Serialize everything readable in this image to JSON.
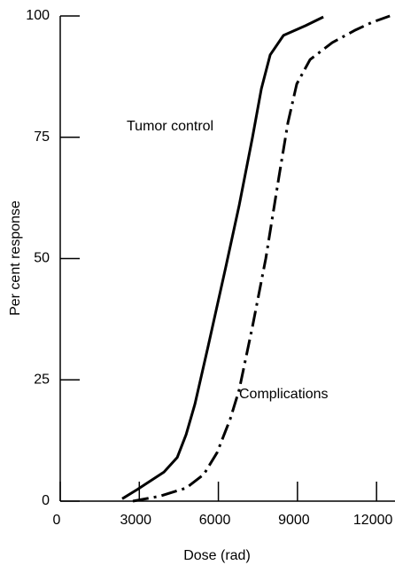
{
  "chart_data": {
    "type": "line",
    "xlabel": "Dose (rad)",
    "ylabel": "Per cent response",
    "xlim": [
      0,
      12700
    ],
    "ylim": [
      0,
      100
    ],
    "xticks": [
      0,
      3000,
      6000,
      9000,
      12000
    ],
    "yticks": [
      0,
      25,
      50,
      75,
      100
    ],
    "grid": false,
    "series": [
      {
        "name": "Tumor control",
        "color": "#000000",
        "style": "solid",
        "x": [
          2353,
          2924,
          3933,
          4437,
          4773,
          5109,
          5613,
          6286,
          6790,
          7294,
          7630,
          7966,
          8471,
          9311,
          9983
        ],
        "values": [
          0.5,
          2.4,
          6,
          9,
          13.7,
          20,
          32,
          48.4,
          61,
          75,
          85,
          92,
          96,
          98,
          99.8
        ]
      },
      {
        "name": "Complications",
        "color": "#000000",
        "style": "dashdot",
        "x": [
          2756,
          3765,
          4773,
          5445,
          5950,
          6454,
          6790,
          7294,
          7798,
          8303,
          8639,
          8975,
          9479,
          10319,
          11160,
          11832,
          12504
        ],
        "values": [
          0,
          1,
          2.7,
          5.5,
          10,
          17,
          23,
          36,
          50,
          67,
          78,
          86,
          91,
          94.5,
          97,
          98.7,
          100
        ]
      }
    ]
  }
}
